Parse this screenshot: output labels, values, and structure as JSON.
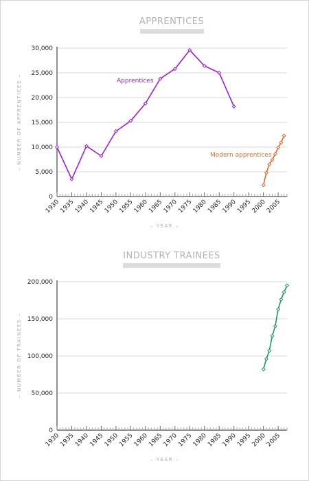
{
  "chart_data": [
    {
      "type": "line",
      "title": "APPRENTICES",
      "xlabel": "– YEAR –",
      "ylabel": "– NUMBER OF APPRENTICES –",
      "xlim": [
        1930,
        2008
      ],
      "ylim": [
        0,
        30000
      ],
      "xticks": [
        "1930",
        "1935",
        "1940",
        "1945",
        "1950",
        "1955",
        "1960",
        "1965",
        "1970",
        "1975",
        "1980",
        "1985",
        "1990",
        "1995",
        "2000",
        "2005"
      ],
      "yticks": [
        "0",
        "5,000",
        "10,000",
        "15,000",
        "20,000",
        "25,000",
        "30,000"
      ],
      "series": [
        {
          "name": "Apprentices",
          "color": "#9b20d8",
          "x": [
            1930,
            1935,
            1940,
            1945,
            1950,
            1955,
            1960,
            1965,
            1970,
            1975,
            1980,
            1985,
            1990
          ],
          "y": [
            10000,
            3500,
            10200,
            8200,
            13200,
            15300,
            18800,
            23800,
            25800,
            29600,
            26400,
            25000,
            18200
          ]
        },
        {
          "name": "Modern apprentices",
          "color": "#e06a2c",
          "x": [
            2000,
            2001,
            2002,
            2003,
            2004,
            2005,
            2006,
            2007
          ],
          "y": [
            2300,
            4800,
            6500,
            7400,
            8600,
            9900,
            10900,
            12300
          ]
        }
      ]
    },
    {
      "type": "line",
      "title": "INDUSTRY TRAINEES",
      "xlabel": "– YEAR –",
      "ylabel": "– NUMBER OF TRAINEES –",
      "xlim": [
        1930,
        2008
      ],
      "ylim": [
        0,
        200000
      ],
      "xticks": [
        "1930",
        "1935",
        "1940",
        "1945",
        "1950",
        "1955",
        "1960",
        "1965",
        "1970",
        "1975",
        "1980",
        "1985",
        "1990",
        "1995",
        "2000",
        "2005"
      ],
      "yticks": [
        "0",
        "50,000",
        "100,000",
        "150,000",
        "200,000"
      ],
      "series": [
        {
          "name": "",
          "color": "#1a9a5a",
          "x": [
            2000,
            2001,
            2002,
            2003,
            2004,
            2005,
            2006,
            2007,
            2008
          ],
          "y": [
            82000,
            96000,
            107000,
            127000,
            140000,
            163000,
            176000,
            186000,
            195000
          ]
        }
      ]
    }
  ]
}
